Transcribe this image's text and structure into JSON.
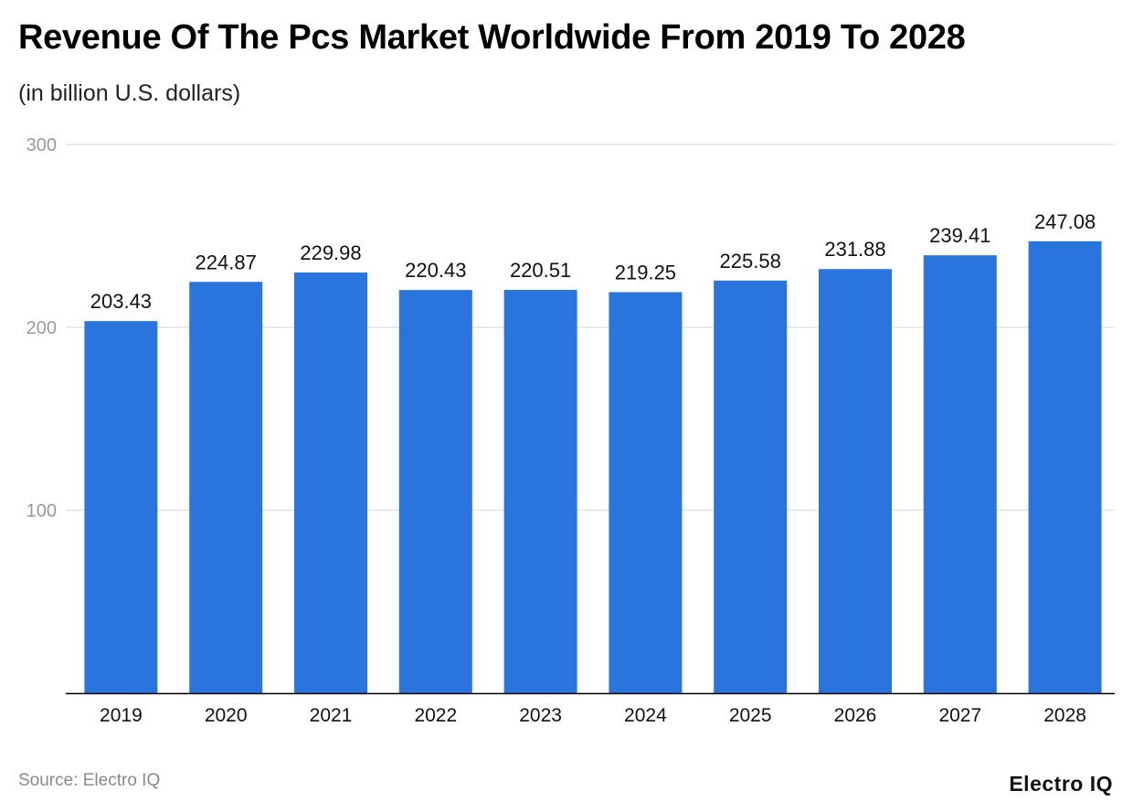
{
  "title": "Revenue Of The Pcs Market Worldwide From 2019 To 2028",
  "subtitle": "(in billion U.S. dollars)",
  "source": "Source: Electro IQ",
  "brand": "Electro IQ",
  "colors": {
    "bar": "#2a75dd",
    "grid": "#e3e3e3",
    "axis": "#000000",
    "tick_label": "#999999",
    "category_label": "#111111",
    "value_label": "#111111"
  },
  "chart_data": {
    "type": "bar",
    "title": "Revenue Of The Pcs Market Worldwide From 2019 To 2028",
    "subtitle": "(in billion U.S. dollars)",
    "categories": [
      "2019",
      "2020",
      "2021",
      "2022",
      "2023",
      "2024",
      "2025",
      "2026",
      "2027",
      "2028"
    ],
    "values": [
      203.43,
      224.87,
      229.98,
      220.43,
      220.51,
      219.25,
      225.58,
      231.88,
      239.41,
      247.08
    ],
    "value_labels": [
      "203.43",
      "224.87",
      "229.98",
      "220.43",
      "220.51",
      "219.25",
      "225.58",
      "231.88",
      "239.41",
      "247.08"
    ],
    "yticks": [
      "100",
      "200",
      "300"
    ],
    "ylim": [
      0,
      300
    ],
    "grid": true,
    "legend": "none"
  }
}
